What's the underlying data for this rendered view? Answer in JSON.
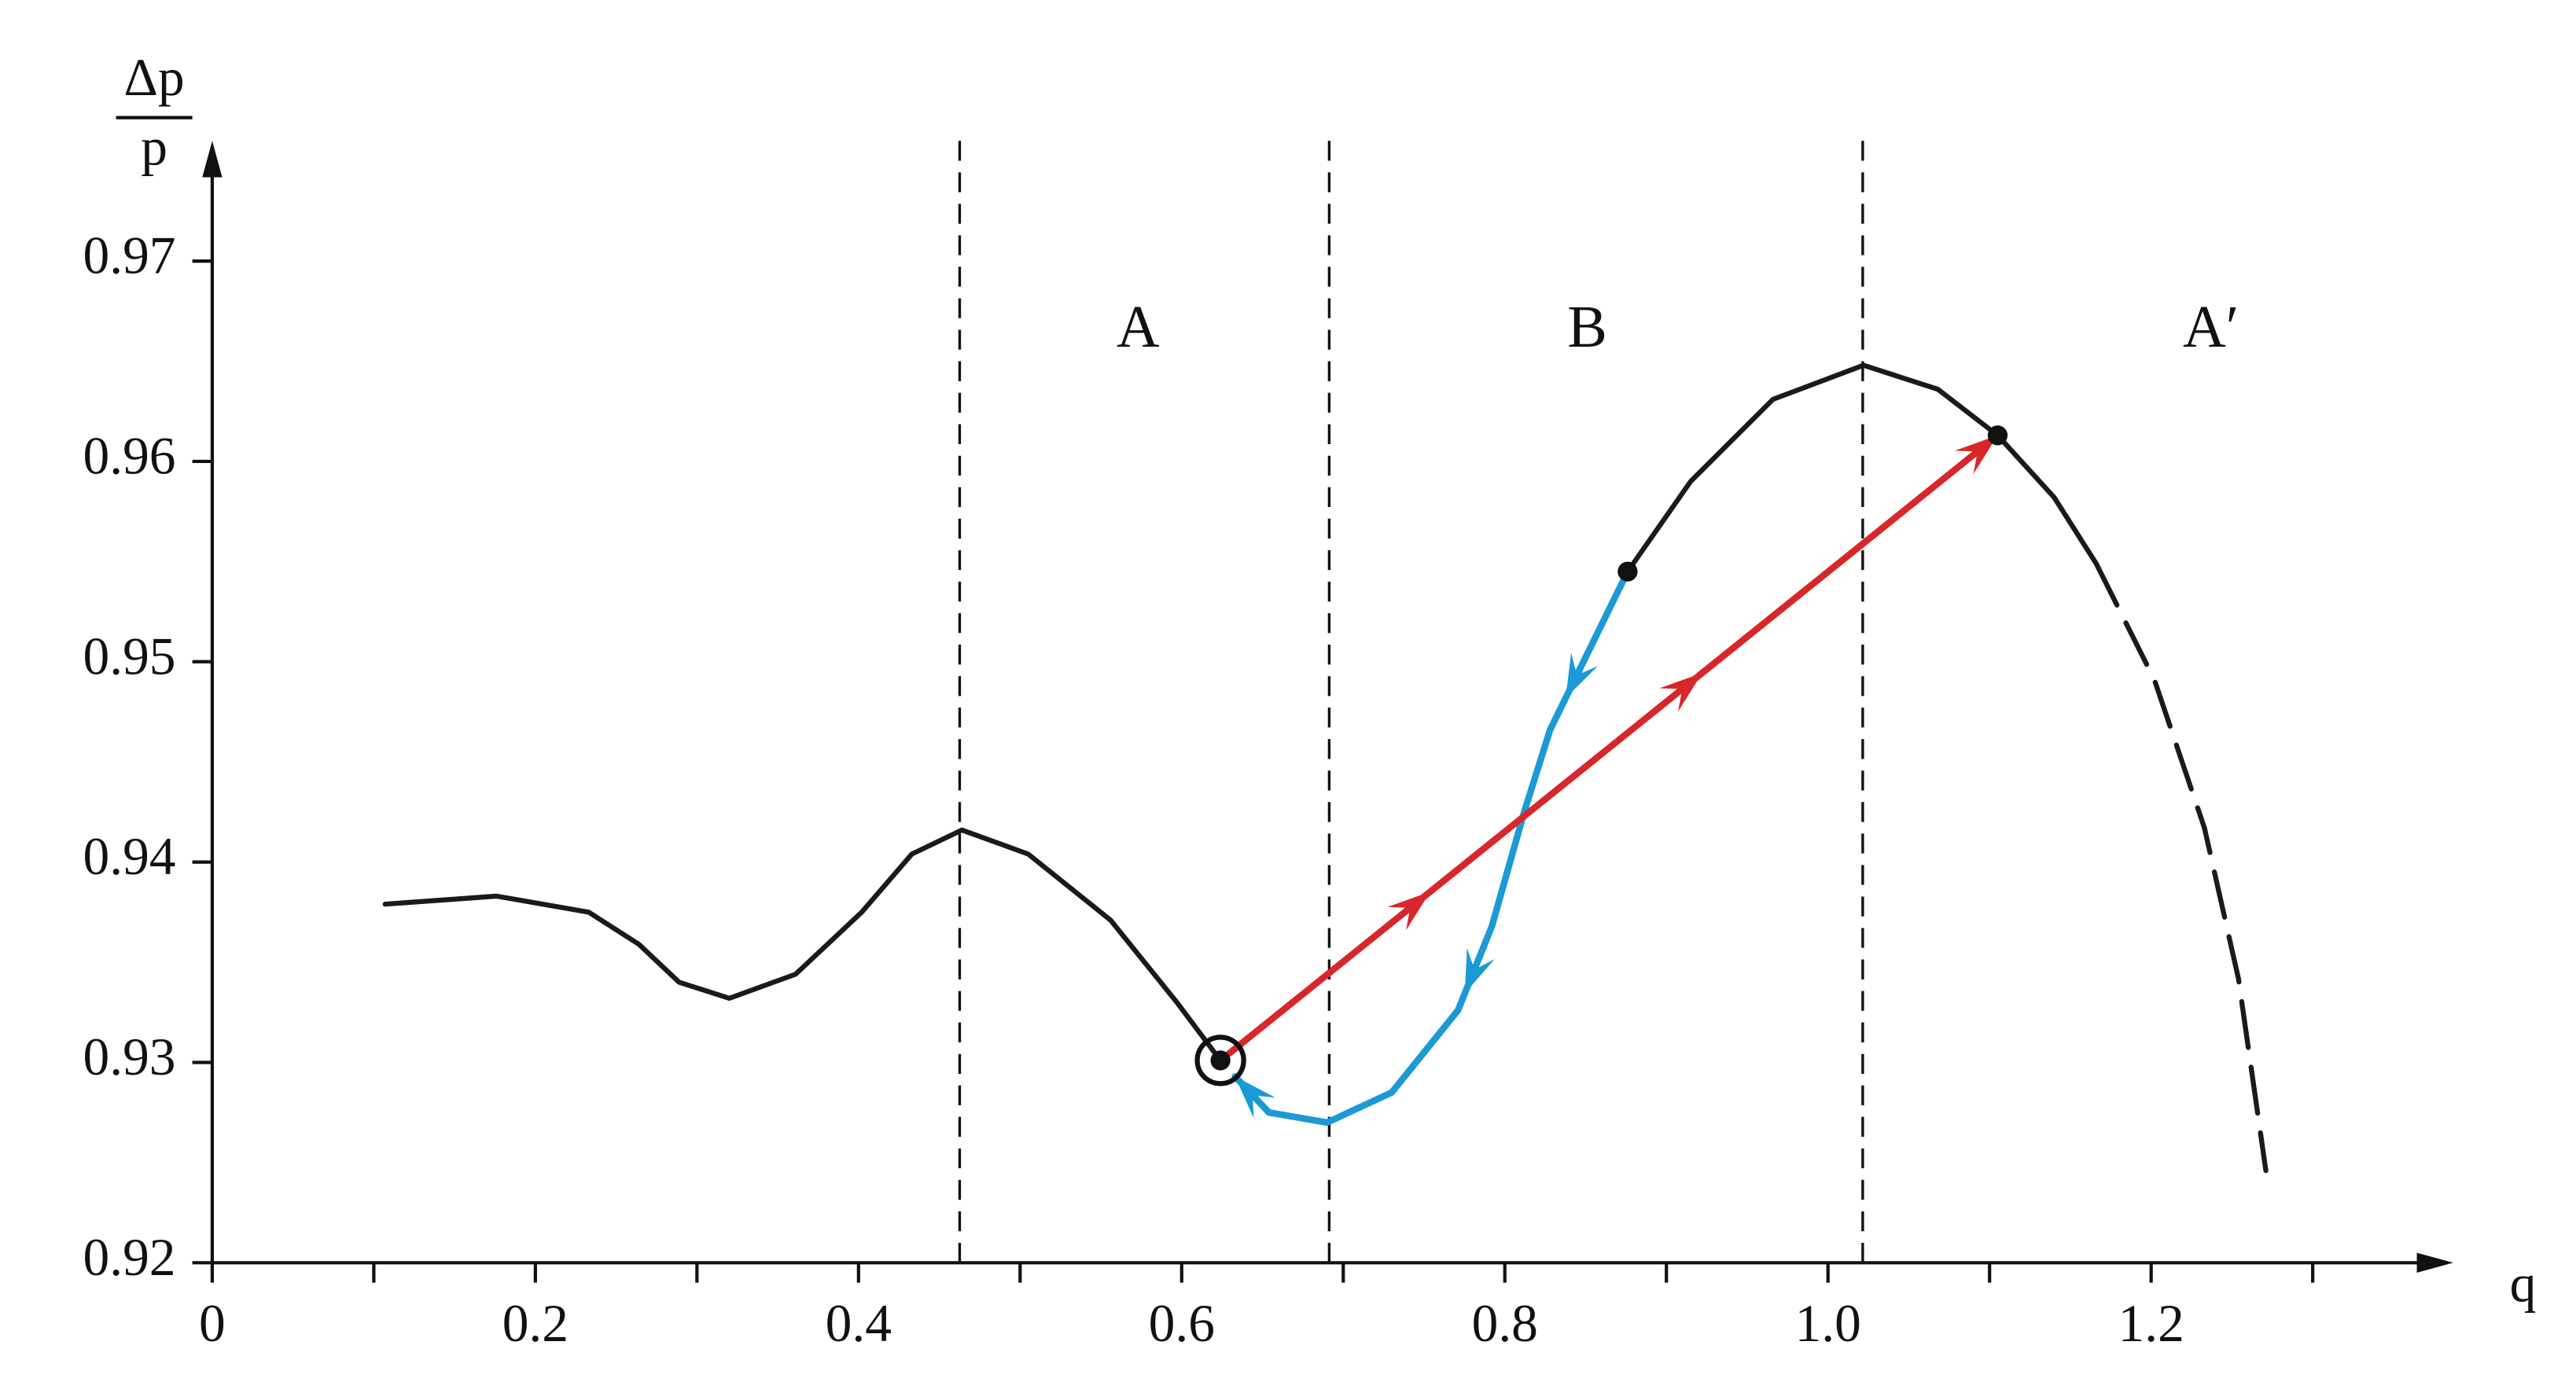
{
  "chart_data": {
    "type": "line",
    "xlabel": "q",
    "ylabel_numerator": "Δp",
    "ylabel_denominator": "p",
    "xlim": [
      0,
      1.387
    ],
    "ylim": [
      0.92,
      0.976
    ],
    "xticks": [
      0,
      0.2,
      0.4,
      0.6,
      0.8,
      {
        "value": 1,
        "label": "1.0"
      },
      1.2
    ],
    "xminorticks": [
      0.1,
      0.3,
      0.5,
      0.7,
      0.9,
      1.1,
      1.3
    ],
    "yticks": [
      0.92,
      0.93,
      0.94,
      0.95,
      0.96,
      0.97
    ],
    "vlines": [
      0.4626,
      0.6913,
      1.0215
    ],
    "regions": [
      {
        "label": "A",
        "x": 0.573,
        "y": 0.9664
      },
      {
        "label": "B",
        "x": 0.851,
        "y": 0.9664
      },
      {
        "label": "A′",
        "x": 1.237,
        "y": 0.9664
      }
    ],
    "series": [
      {
        "color": "#1a1a1a",
        "style": "solid",
        "x": [
          0.107,
          0.176,
          0.233,
          0.264,
          0.289,
          0.32,
          0.361,
          0.402,
          0.433,
          0.464,
          0.505,
          0.556,
          0.597,
          0.624,
          null,
          0.876,
          0.915,
          0.966,
          1.022,
          1.068,
          1.105,
          1.14,
          1.166
        ],
        "values": [
          0.9379,
          0.9383,
          0.9375,
          0.9359,
          0.934,
          0.9332,
          0.9344,
          0.9375,
          0.9404,
          0.9416,
          0.9404,
          0.9371,
          0.933,
          0.9301,
          null,
          0.9545,
          0.959,
          0.9631,
          0.9648,
          0.9636,
          0.9613,
          0.9582,
          0.9549
        ]
      },
      {
        "color": "#1a1a1a",
        "style": "dashed",
        "x": [
          1.166,
          1.202,
          1.233,
          1.254,
          1.271
        ],
        "values": [
          0.9549,
          0.9491,
          0.9417,
          0.9342,
          0.9246
        ]
      },
      {
        "color": "#1b9ad6",
        "style": "arrow",
        "x": [
          0.876,
          0.828,
          0.812,
          0.792,
          0.771,
          0.73,
          0.69,
          0.654,
          0.633
        ],
        "values": [
          0.9545,
          0.9466,
          0.9425,
          0.9368,
          0.9326,
          0.9285,
          0.927,
          0.9275,
          0.9293
        ]
      },
      {
        "color": "#d9262a",
        "style": "arrow",
        "x": [
          0.624,
          1.105
        ],
        "values": [
          0.9301,
          0.9613
        ]
      }
    ],
    "points": {
      "x": [
        0.624,
        0.876,
        1.105
      ],
      "values": [
        0.9301,
        0.9545,
        0.9613
      ],
      "circled": [
        true,
        false,
        false
      ]
    }
  }
}
